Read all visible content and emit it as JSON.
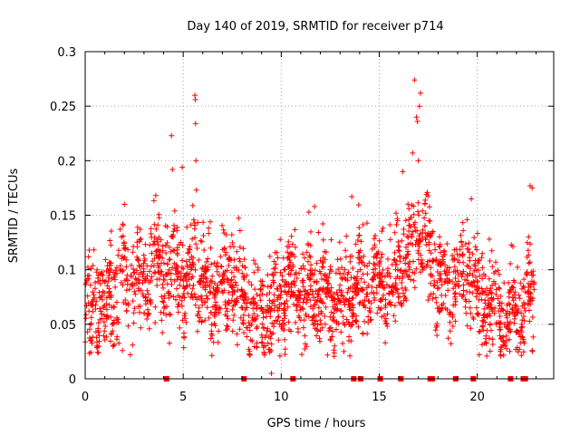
{
  "chart_data": {
    "type": "scatter",
    "title": "Day 140 of 2019, SRMTID for receiver p714",
    "xlabel": "GPS time / hours",
    "ylabel": "SRMTID / TECUs",
    "xlim": [
      0,
      23.9
    ],
    "ylim": [
      0,
      0.3
    ],
    "x_ticks": [
      0,
      5,
      10,
      15,
      20
    ],
    "x_tick_labels": [
      "0",
      "5",
      "10",
      "15",
      "20"
    ],
    "y_ticks": [
      0,
      0.05,
      0.1,
      0.15,
      0.2,
      0.25,
      0.3
    ],
    "y_tick_labels": [
      "0",
      "0.05",
      "0.1",
      "0.15",
      "0.2",
      "0.25",
      "0.3"
    ],
    "grid": true,
    "marker": "plus",
    "color": "#ff0000",
    "series_name": "SRMTID",
    "profile": [
      [
        0.0,
        0.055
      ],
      [
        0.5,
        0.065
      ],
      [
        1.0,
        0.07
      ],
      [
        1.5,
        0.085
      ],
      [
        2.0,
        0.1
      ],
      [
        2.5,
        0.095
      ],
      [
        3.0,
        0.085
      ],
      [
        3.5,
        0.1
      ],
      [
        4.0,
        0.095
      ],
      [
        4.5,
        0.1
      ],
      [
        5.0,
        0.09
      ],
      [
        5.5,
        0.1
      ],
      [
        6.0,
        0.09
      ],
      [
        6.5,
        0.075
      ],
      [
        7.0,
        0.08
      ],
      [
        7.5,
        0.095
      ],
      [
        8.0,
        0.07
      ],
      [
        8.5,
        0.06
      ],
      [
        9.0,
        0.055
      ],
      [
        9.5,
        0.065
      ],
      [
        10.0,
        0.075
      ],
      [
        10.5,
        0.09
      ],
      [
        11.0,
        0.08
      ],
      [
        11.5,
        0.075
      ],
      [
        12.0,
        0.085
      ],
      [
        12.5,
        0.075
      ],
      [
        13.0,
        0.07
      ],
      [
        13.5,
        0.08
      ],
      [
        14.0,
        0.085
      ],
      [
        14.5,
        0.09
      ],
      [
        15.0,
        0.09
      ],
      [
        15.5,
        0.085
      ],
      [
        16.0,
        0.1
      ],
      [
        16.5,
        0.11
      ],
      [
        17.0,
        0.135
      ],
      [
        17.5,
        0.11
      ],
      [
        18.0,
        0.1
      ],
      [
        18.5,
        0.09
      ],
      [
        19.0,
        0.085
      ],
      [
        19.5,
        0.1
      ],
      [
        20.0,
        0.08
      ],
      [
        20.5,
        0.07
      ],
      [
        21.0,
        0.065
      ],
      [
        21.5,
        0.055
      ],
      [
        22.0,
        0.06
      ],
      [
        22.5,
        0.07
      ],
      [
        22.9,
        0.075
      ]
    ],
    "spread": 0.022,
    "point_count": 2200,
    "notable_points": [
      [
        4.4,
        0.223
      ],
      [
        4.45,
        0.192
      ],
      [
        4.95,
        0.194
      ],
      [
        5.6,
        0.26
      ],
      [
        5.62,
        0.256
      ],
      [
        5.63,
        0.234
      ],
      [
        5.65,
        0.2
      ],
      [
        5.67,
        0.173
      ],
      [
        2.0,
        0.16
      ],
      [
        3.6,
        0.168
      ],
      [
        16.8,
        0.274
      ],
      [
        17.1,
        0.262
      ],
      [
        17.05,
        0.25
      ],
      [
        16.9,
        0.24
      ],
      [
        16.95,
        0.236
      ],
      [
        16.7,
        0.207
      ],
      [
        17.0,
        0.2
      ],
      [
        16.2,
        0.19
      ],
      [
        22.7,
        0.177
      ],
      [
        22.8,
        0.175
      ],
      [
        19.7,
        0.165
      ],
      [
        13.6,
        0.167
      ],
      [
        11.7,
        0.158
      ],
      [
        1.9,
        0.026
      ],
      [
        2.3,
        0.022
      ],
      [
        13.2,
        0.025
      ],
      [
        21.2,
        0.022
      ],
      [
        20.1,
        0.022
      ],
      [
        22.8,
        0.026
      ],
      [
        9.5,
        0.005
      ]
    ],
    "data_gaps_hours": [
      4.15,
      8.1,
      10.6,
      13.7,
      14.05,
      15.05,
      16.1,
      17.6,
      17.7,
      18.9,
      19.8,
      21.7,
      22.35,
      22.45
    ]
  }
}
